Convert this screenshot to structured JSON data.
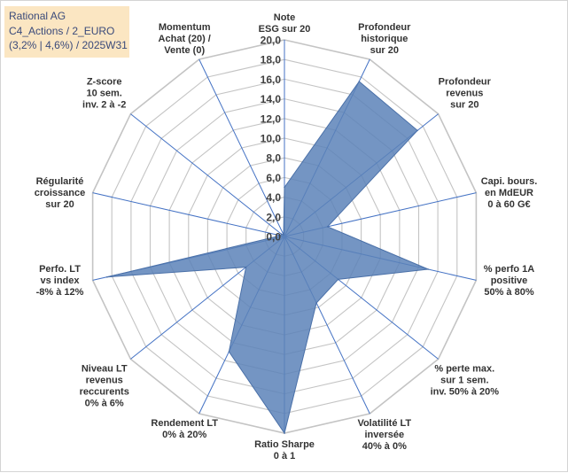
{
  "title": {
    "line1": "Rational AG",
    "line2": "C4_Actions / 2_EURO",
    "line3": "(3,2% | 4,6%) / 2025W31"
  },
  "colors": {
    "fill": "#5c82b8",
    "stroke": "#4a70a8",
    "spoke": "#4472c4",
    "grid": "#c4c4c4",
    "title_bg": "#fbe6c2"
  },
  "chart_data": {
    "type": "radar",
    "rmin": 0,
    "rmax": 20,
    "tick_step": 2,
    "tick_labels": [
      "0,0",
      "2,0",
      "4,0",
      "6,0",
      "8,0",
      "10,0",
      "12,0",
      "14,0",
      "16,0",
      "18,0",
      "20,0"
    ],
    "axes": [
      {
        "label": [
          "Note",
          "ESG sur 20"
        ],
        "value": 5.0
      },
      {
        "label": [
          "Profondeur",
          "historique",
          "sur 20"
        ],
        "value": 17.5
      },
      {
        "label": [
          "Profondeur",
          "revenus",
          "sur 20"
        ],
        "value": 17.3
      },
      {
        "label": [
          "Capi. bours.",
          "en MdEUR",
          "0 à 60 G€"
        ],
        "value": 4.5
      },
      {
        "label": [
          "% perfo 1A",
          "positive",
          "50% à 80%"
        ],
        "value": 15.0
      },
      {
        "label": [
          "% perte max.",
          "sur 1 sem.",
          "inv. 50% à 20%"
        ],
        "value": 7.0
      },
      {
        "label": [
          "Volatilité LT",
          "inversée",
          "40% à 0%"
        ],
        "value": 7.5
      },
      {
        "label": [
          "Ratio Sharpe",
          "0 à 1"
        ],
        "value": 20.0
      },
      {
        "label": [
          "Rendement LT",
          "0% à 20%"
        ],
        "value": 13.0
      },
      {
        "label": [
          "Niveau LT",
          "revenus",
          "reccurents",
          "0% à 6%"
        ],
        "value": 5.0
      },
      {
        "label": [
          "Perfo. LT",
          "vs index",
          "-8% à 12%"
        ],
        "value": 18.5
      },
      {
        "label": [
          "Régularité",
          "croissance",
          "sur 20"
        ],
        "value": 0.4
      },
      {
        "label": [
          "Z-score",
          "10 sem.",
          "inv. 2 à -2"
        ],
        "value": 0.4
      },
      {
        "label": [
          "Momentum",
          "Achat (20) /",
          "Vente (0)"
        ],
        "value": 0.2
      }
    ]
  }
}
